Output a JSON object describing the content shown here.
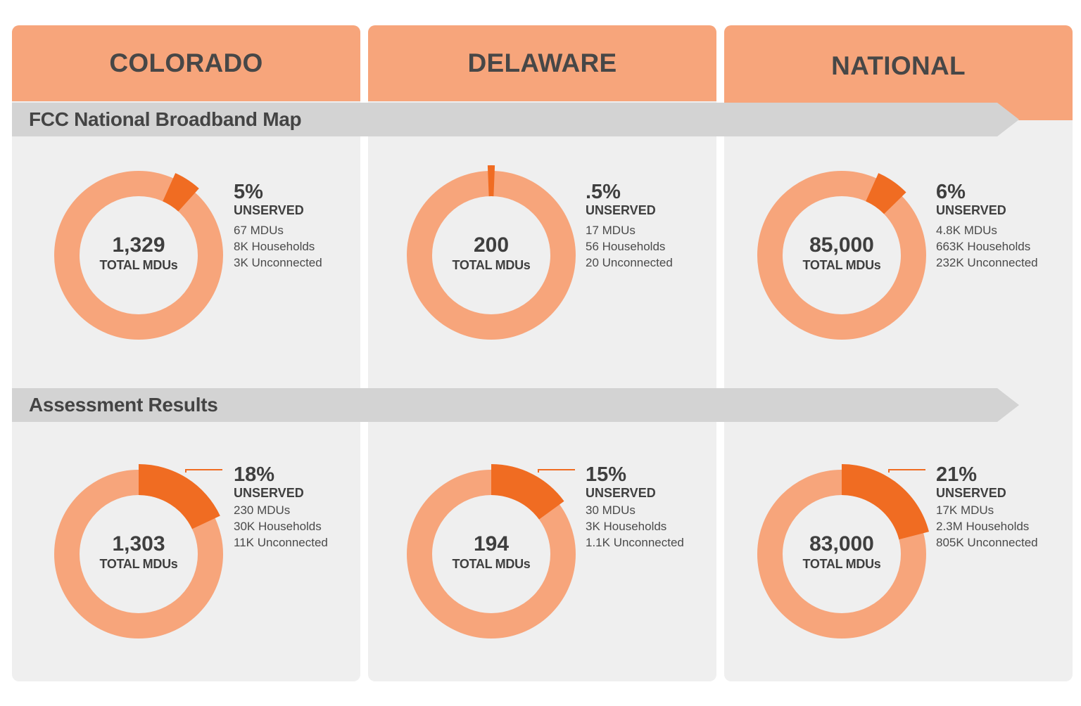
{
  "states": [
    {
      "name": "COLORADO"
    },
    {
      "name": "DELAWARE"
    },
    {
      "name": "NATIONAL"
    }
  ],
  "sections": [
    {
      "title": "FCC National Broadband Map"
    },
    {
      "title": "Assessment Results"
    }
  ],
  "colors": {
    "header": "#f7a57b",
    "ring": "#f7a57b",
    "highlight": "#f06c22",
    "panel": "#efefef",
    "band": "#d3d3d3"
  },
  "chart_data": [
    {
      "type": "pie",
      "section": "FCC National Broadband Map",
      "region": "COLORADO",
      "unserved_fraction": 0.05,
      "total": "1,329",
      "total_label": "TOTAL MDUs",
      "pct_label": "5%",
      "status": "UNSERVED",
      "lines": [
        "67 MDUs",
        "8K Households",
        "3K Unconnected"
      ]
    },
    {
      "type": "pie",
      "section": "FCC National Broadband Map",
      "region": "DELAWARE",
      "unserved_fraction": 0.005,
      "total": "200",
      "total_label": "TOTAL MDUs",
      "pct_label": ".5%",
      "status": "UNSERVED",
      "lines": [
        "17 MDUs",
        "56 Households",
        "20 Unconnected"
      ]
    },
    {
      "type": "pie",
      "section": "FCC National Broadband Map",
      "region": "NATIONAL",
      "unserved_fraction": 0.06,
      "total": "85,000",
      "total_label": "TOTAL MDUs",
      "pct_label": "6%",
      "status": "UNSERVED",
      "lines": [
        "4.8K MDUs",
        "663K Households",
        "232K Unconnected"
      ]
    },
    {
      "type": "pie",
      "section": "Assessment Results",
      "region": "COLORADO",
      "unserved_fraction": 0.18,
      "total": "1,303",
      "total_label": "TOTAL MDUs",
      "pct_label": "18%",
      "status": "UNSERVED",
      "lines": [
        "230 MDUs",
        "30K Households",
        "11K Unconnected"
      ]
    },
    {
      "type": "pie",
      "section": "Assessment Results",
      "region": "DELAWARE",
      "unserved_fraction": 0.15,
      "total": "194",
      "total_label": "TOTAL MDUs",
      "pct_label": "15%",
      "status": "UNSERVED",
      "lines": [
        "30 MDUs",
        "3K Households",
        "1.1K Unconnected"
      ]
    },
    {
      "type": "pie",
      "section": "Assessment Results",
      "region": "NATIONAL",
      "unserved_fraction": 0.21,
      "total": "83,000",
      "total_label": "TOTAL MDUs",
      "pct_label": "21%",
      "status": "UNSERVED",
      "lines": [
        "17K MDUs",
        "2.3M Households",
        "805K Unconnected"
      ]
    }
  ]
}
